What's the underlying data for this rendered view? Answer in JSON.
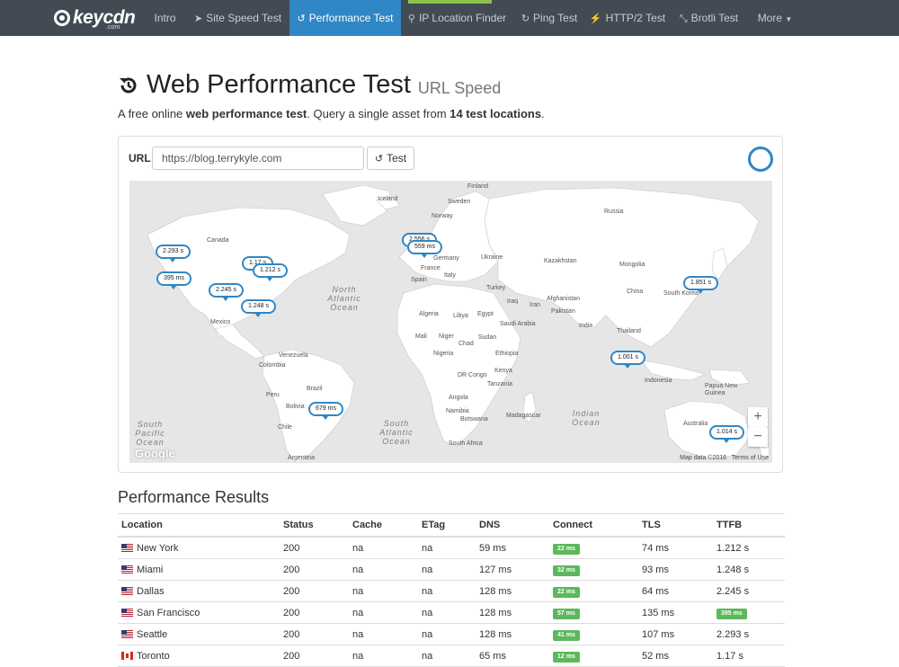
{
  "nav": {
    "logo_text": "keycdn",
    "logo_sub": ".com",
    "items": [
      {
        "label": "Intro",
        "icon": ""
      },
      {
        "label": "Site Speed Test",
        "icon": "rocket-icon"
      },
      {
        "label": "Performance Test",
        "icon": "history-icon"
      },
      {
        "label": "IP Location Finder",
        "icon": "map-marker-icon"
      },
      {
        "label": "Ping Test",
        "icon": "refresh-icon"
      },
      {
        "label": "HTTP/2 Test",
        "icon": "bolt-icon"
      },
      {
        "label": "Brotli Test",
        "icon": "compress-icon"
      },
      {
        "label": "More",
        "icon": "caret-down-icon"
      }
    ],
    "active_color": "#2f87c6",
    "bar_color": "#424b53"
  },
  "page": {
    "title": "Web Performance Test",
    "title_small": "URL Speed",
    "lead_a": "A free online ",
    "lead_b": "web performance test",
    "lead_c": ". Query a single asset from ",
    "lead_d": "14 test locations",
    "lead_e": "."
  },
  "form": {
    "url_label": "URL",
    "url_value": "https://blog.terrykyle.com",
    "test_label": "Test"
  },
  "map": {
    "countries": [
      "Iceland",
      "Finland",
      "Sweden",
      "Norway",
      "Russia",
      "Canada",
      "Kazakhstan",
      "Mongolia",
      "Germany",
      "Ukraine",
      "France",
      "Spain",
      "Italy",
      "Turkey",
      "China",
      "South Korea",
      "Iraq",
      "Iran",
      "Afghanistan",
      "Pakistan",
      "Algeria",
      "Libya",
      "Egypt",
      "Saudi Arabia",
      "Mexico",
      "India",
      "Thailand",
      "Mali",
      "Niger",
      "Chad",
      "Sudan",
      "Ethiopia",
      "Nigeria",
      "Kenya",
      "Venezuela",
      "Colombia",
      "DR Congo",
      "Tanzania",
      "Indonesia",
      "Brazil",
      "Peru",
      "Angola",
      "Bolivia",
      "Namibia",
      "Botswana",
      "Madagascar",
      "Papua New Guinea",
      "Australia",
      "Chile",
      "South Africa",
      "Argentina"
    ],
    "oceans": [
      "North Atlantic Ocean",
      "South Atlantic Ocean",
      "South Pacific Ocean",
      "Indian Ocean"
    ],
    "markers": [
      "2.293 s",
      "1.17 s",
      "1.212 s",
      "395 ms",
      "2.245 s",
      "1.248 s",
      "2.556 s",
      "559 ms",
      "1.851 s",
      "1.001 s",
      "679 ms",
      "1.014 s"
    ],
    "zoom_in": "+",
    "zoom_out": "−",
    "google": "Google",
    "map_data": "Map data ©2016",
    "terms": "Terms of Use"
  },
  "results": {
    "title": "Performance Results",
    "columns": [
      "Location",
      "Status",
      "Cache",
      "ETag",
      "DNS",
      "Connect",
      "TLS",
      "TTFB"
    ],
    "rows": [
      {
        "flag": "us",
        "location": "New York",
        "status": "200",
        "cache": "na",
        "etag": "na",
        "dns": "59 ms",
        "connect": "22 ms",
        "tls": "74 ms",
        "ttfb": "1.212 s",
        "ttfb_badge": false
      },
      {
        "flag": "us",
        "location": "Miami",
        "status": "200",
        "cache": "na",
        "etag": "na",
        "dns": "127 ms",
        "connect": "32 ms",
        "tls": "93 ms",
        "ttfb": "1.248 s",
        "ttfb_badge": false
      },
      {
        "flag": "us",
        "location": "Dallas",
        "status": "200",
        "cache": "na",
        "etag": "na",
        "dns": "128 ms",
        "connect": "22 ms",
        "tls": "64 ms",
        "ttfb": "2.245 s",
        "ttfb_badge": false
      },
      {
        "flag": "us",
        "location": "San Francisco",
        "status": "200",
        "cache": "na",
        "etag": "na",
        "dns": "128 ms",
        "connect": "57 ms",
        "tls": "135 ms",
        "ttfb": "395 ms",
        "ttfb_badge": true
      },
      {
        "flag": "us",
        "location": "Seattle",
        "status": "200",
        "cache": "na",
        "etag": "na",
        "dns": "128 ms",
        "connect": "41 ms",
        "tls": "107 ms",
        "ttfb": "2.293 s",
        "ttfb_badge": false
      },
      {
        "flag": "ca",
        "location": "Toronto",
        "status": "200",
        "cache": "na",
        "etag": "na",
        "dns": "65 ms",
        "connect": "12 ms",
        "tls": "52 ms",
        "ttfb": "1.17 s",
        "ttfb_badge": false
      }
    ]
  },
  "colors": {
    "badge_green": "#5cb85c",
    "map_land": "#ffffff",
    "map_water": "#e6e6e6"
  }
}
